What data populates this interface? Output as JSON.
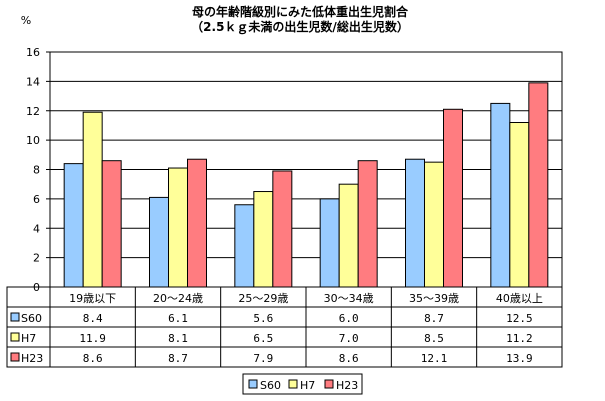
{
  "chart_data": {
    "type": "bar",
    "title_line1": "母の年齢階級別にみた低体重出生児割合",
    "title_line2": "（2.5ｋｇ未満の出生児数/総出生児数）",
    "ylabel": "%",
    "ylim": [
      0,
      16
    ],
    "yticks": [
      0,
      2,
      4,
      6,
      8,
      10,
      12,
      14,
      16
    ],
    "grid": true,
    "legend_position": "bottom",
    "categories": [
      "19歳以下",
      "20～24歳",
      "25～29歳",
      "30～34歳",
      "35～39歳",
      "40歳以上"
    ],
    "series": [
      {
        "name": "S60",
        "color": "#99ccff",
        "values": [
          8.4,
          6.1,
          5.6,
          6.0,
          8.7,
          12.5
        ]
      },
      {
        "name": "H7",
        "color": "#ffff99",
        "values": [
          11.9,
          8.1,
          6.5,
          7.0,
          8.5,
          11.2
        ]
      },
      {
        "name": "H23",
        "color": "#ff7c80",
        "values": [
          8.6,
          8.7,
          7.9,
          8.6,
          12.1,
          13.9
        ]
      }
    ]
  }
}
